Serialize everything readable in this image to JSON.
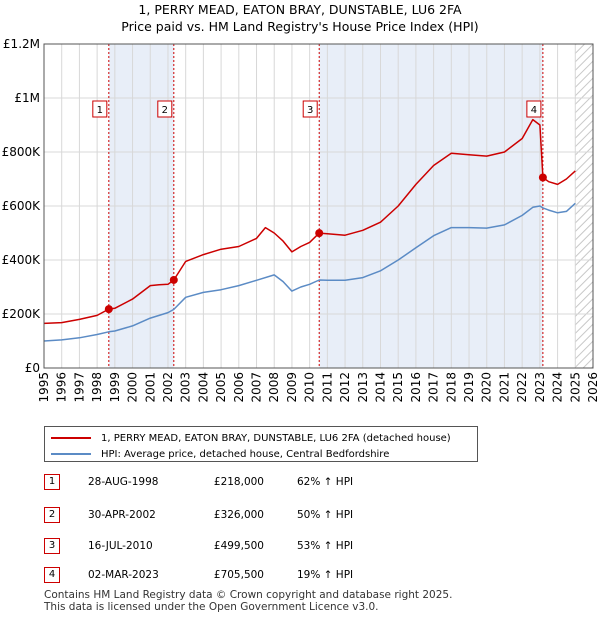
{
  "title_line1": "1, PERRY MEAD, EATON BRAY, DUNSTABLE, LU6 2FA",
  "title_line2": "Price paid vs. HM Land Registry's House Price Index (HPI)",
  "chart_data": {
    "type": "line",
    "title": "Price paid vs. HM Land Registry's House Price Index (HPI)",
    "xlabel": "",
    "ylabel": "",
    "xlim": [
      1995,
      2026
    ],
    "ylim": [
      0,
      1200000
    ],
    "y_ticks": [
      0,
      200000,
      400000,
      600000,
      800000,
      1000000,
      1200000
    ],
    "y_tick_labels": [
      "£0",
      "£200K",
      "£400K",
      "£600K",
      "£800K",
      "£1M",
      "£1.2M"
    ],
    "x_ticks": [
      1995,
      1996,
      1997,
      1998,
      1999,
      2000,
      2001,
      2002,
      2003,
      2004,
      2005,
      2006,
      2007,
      2008,
      2009,
      2010,
      2011,
      2012,
      2013,
      2014,
      2015,
      2016,
      2017,
      2018,
      2019,
      2020,
      2021,
      2022,
      2023,
      2024,
      2025,
      2026
    ],
    "grid": true,
    "shaded_periods": [
      [
        1998.66,
        2002.33
      ],
      [
        2010.54,
        2023.17
      ]
    ],
    "hatched_from": 2025.0,
    "series": [
      {
        "name": "1, PERRY MEAD, EATON BRAY, DUNSTABLE, LU6 2FA (detached house)",
        "color": "#cc0000",
        "x": [
          1995.0,
          1996.0,
          1997.0,
          1998.0,
          1998.66,
          1999.0,
          2000.0,
          2001.0,
          2001.5,
          2002.0,
          2002.33,
          2003.0,
          2004.0,
          2005.0,
          2006.0,
          2007.0,
          2007.5,
          2008.0,
          2008.5,
          2009.0,
          2009.5,
          2010.0,
          2010.54,
          2011.0,
          2012.0,
          2013.0,
          2014.0,
          2015.0,
          2016.0,
          2017.0,
          2018.0,
          2019.0,
          2020.0,
          2021.0,
          2022.0,
          2022.6,
          2023.0,
          2023.17,
          2023.5,
          2024.0,
          2024.5,
          2025.0
        ],
        "values": [
          165000,
          168000,
          180000,
          195000,
          218000,
          221000,
          255000,
          305000,
          308000,
          310000,
          326000,
          395000,
          420000,
          440000,
          450000,
          480000,
          520000,
          500000,
          470000,
          430000,
          450000,
          465000,
          499500,
          497000,
          492000,
          510000,
          540000,
          600000,
          680000,
          750000,
          795000,
          790000,
          785000,
          800000,
          850000,
          920000,
          900000,
          705500,
          690000,
          680000,
          700000,
          730000
        ]
      },
      {
        "name": "HPI: Average price, detached house, Central Bedfordshire",
        "color": "#5b8bc5",
        "x": [
          1995.0,
          1996.0,
          1997.0,
          1998.0,
          1998.66,
          1999.0,
          2000.0,
          2001.0,
          2002.0,
          2002.33,
          2003.0,
          2004.0,
          2005.0,
          2006.0,
          2007.0,
          2008.0,
          2008.5,
          2009.0,
          2009.5,
          2010.0,
          2010.54,
          2011.0,
          2012.0,
          2013.0,
          2014.0,
          2015.0,
          2016.0,
          2017.0,
          2018.0,
          2019.0,
          2020.0,
          2021.0,
          2022.0,
          2022.6,
          2023.0,
          2023.17,
          2023.5,
          2024.0,
          2024.5,
          2025.0
        ],
        "values": [
          100000,
          104000,
          112000,
          124000,
          134000,
          137000,
          156000,
          185000,
          205000,
          217000,
          262000,
          280000,
          290000,
          305000,
          325000,
          345000,
          320000,
          285000,
          300000,
          310000,
          326000,
          325000,
          325000,
          335000,
          360000,
          400000,
          445000,
          490000,
          520000,
          520000,
          518000,
          530000,
          565000,
          595000,
          600000,
          593000,
          585000,
          575000,
          580000,
          610000
        ]
      }
    ],
    "sales": [
      {
        "label": "1",
        "date": "28-AUG-1998",
        "x": 1998.66,
        "price": 218000
      },
      {
        "label": "2",
        "date": "30-APR-2002",
        "x": 2002.33,
        "price": 326000
      },
      {
        "label": "3",
        "date": "16-JUL-2010",
        "x": 2010.54,
        "price": 499500
      },
      {
        "label": "4",
        "date": "02-MAR-2023",
        "x": 2023.17,
        "price": 705500
      }
    ],
    "marker_value": 1000000
  },
  "legend": {
    "red_label": "1, PERRY MEAD, EATON BRAY, DUNSTABLE, LU6 2FA (detached house)",
    "blue_label": "HPI: Average price, detached house, Central Bedfordshire"
  },
  "sales_table": [
    {
      "num": "1",
      "date": "28-AUG-1998",
      "price": "£218,000",
      "hpi": "62% ↑ HPI"
    },
    {
      "num": "2",
      "date": "30-APR-2002",
      "price": "£326,000",
      "hpi": "50% ↑ HPI"
    },
    {
      "num": "3",
      "date": "16-JUL-2010",
      "price": "£499,500",
      "hpi": "53% ↑ HPI"
    },
    {
      "num": "4",
      "date": "02-MAR-2023",
      "price": "£705,500",
      "hpi": "19% ↑ HPI"
    }
  ],
  "footer_line1": "Contains HM Land Registry data © Crown copyright and database right 2025.",
  "footer_line2": "This data is licensed under the Open Government Licence v3.0.",
  "colors": {
    "red": "#cc0000",
    "blue": "#5b8bc5",
    "shade": "#e8eef8",
    "grid": "#d8d8d8"
  }
}
